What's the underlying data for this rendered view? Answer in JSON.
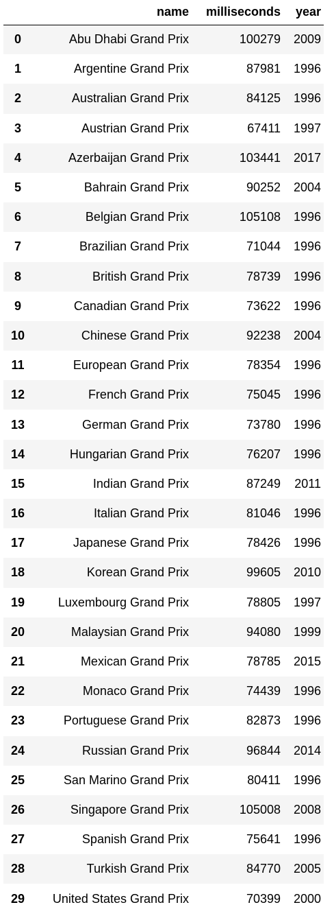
{
  "table": {
    "columns": [
      "",
      "name",
      "milliseconds",
      "year"
    ],
    "rows": [
      {
        "index": "0",
        "name": "Abu Dhabi Grand Prix",
        "milliseconds": "100279",
        "year": "2009"
      },
      {
        "index": "1",
        "name": "Argentine Grand Prix",
        "milliseconds": "87981",
        "year": "1996"
      },
      {
        "index": "2",
        "name": "Australian Grand Prix",
        "milliseconds": "84125",
        "year": "1996"
      },
      {
        "index": "3",
        "name": "Austrian Grand Prix",
        "milliseconds": "67411",
        "year": "1997"
      },
      {
        "index": "4",
        "name": "Azerbaijan Grand Prix",
        "milliseconds": "103441",
        "year": "2017"
      },
      {
        "index": "5",
        "name": "Bahrain Grand Prix",
        "milliseconds": "90252",
        "year": "2004"
      },
      {
        "index": "6",
        "name": "Belgian Grand Prix",
        "milliseconds": "105108",
        "year": "1996"
      },
      {
        "index": "7",
        "name": "Brazilian Grand Prix",
        "milliseconds": "71044",
        "year": "1996"
      },
      {
        "index": "8",
        "name": "British Grand Prix",
        "milliseconds": "78739",
        "year": "1996"
      },
      {
        "index": "9",
        "name": "Canadian Grand Prix",
        "milliseconds": "73622",
        "year": "1996"
      },
      {
        "index": "10",
        "name": "Chinese Grand Prix",
        "milliseconds": "92238",
        "year": "2004"
      },
      {
        "index": "11",
        "name": "European Grand Prix",
        "milliseconds": "78354",
        "year": "1996"
      },
      {
        "index": "12",
        "name": "French Grand Prix",
        "milliseconds": "75045",
        "year": "1996"
      },
      {
        "index": "13",
        "name": "German Grand Prix",
        "milliseconds": "73780",
        "year": "1996"
      },
      {
        "index": "14",
        "name": "Hungarian Grand Prix",
        "milliseconds": "76207",
        "year": "1996"
      },
      {
        "index": "15",
        "name": "Indian Grand Prix",
        "milliseconds": "87249",
        "year": "2011"
      },
      {
        "index": "16",
        "name": "Italian Grand Prix",
        "milliseconds": "81046",
        "year": "1996"
      },
      {
        "index": "17",
        "name": "Japanese Grand Prix",
        "milliseconds": "78426",
        "year": "1996"
      },
      {
        "index": "18",
        "name": "Korean Grand Prix",
        "milliseconds": "99605",
        "year": "2010"
      },
      {
        "index": "19",
        "name": "Luxembourg Grand Prix",
        "milliseconds": "78805",
        "year": "1997"
      },
      {
        "index": "20",
        "name": "Malaysian Grand Prix",
        "milliseconds": "94080",
        "year": "1999"
      },
      {
        "index": "21",
        "name": "Mexican Grand Prix",
        "milliseconds": "78785",
        "year": "2015"
      },
      {
        "index": "22",
        "name": "Monaco Grand Prix",
        "milliseconds": "74439",
        "year": "1996"
      },
      {
        "index": "23",
        "name": "Portuguese Grand Prix",
        "milliseconds": "82873",
        "year": "1996"
      },
      {
        "index": "24",
        "name": "Russian Grand Prix",
        "milliseconds": "96844",
        "year": "2014"
      },
      {
        "index": "25",
        "name": "San Marino Grand Prix",
        "milliseconds": "80411",
        "year": "1996"
      },
      {
        "index": "26",
        "name": "Singapore Grand Prix",
        "milliseconds": "105008",
        "year": "2008"
      },
      {
        "index": "27",
        "name": "Spanish Grand Prix",
        "milliseconds": "75641",
        "year": "1996"
      },
      {
        "index": "28",
        "name": "Turkish Grand Prix",
        "milliseconds": "84770",
        "year": "2005"
      },
      {
        "index": "29",
        "name": "United States Grand Prix",
        "milliseconds": "70399",
        "year": "2000"
      }
    ]
  },
  "colors": {
    "stripe": "#f5f5f5",
    "background": "#ffffff",
    "text": "#000000",
    "header_border": "#000000"
  }
}
